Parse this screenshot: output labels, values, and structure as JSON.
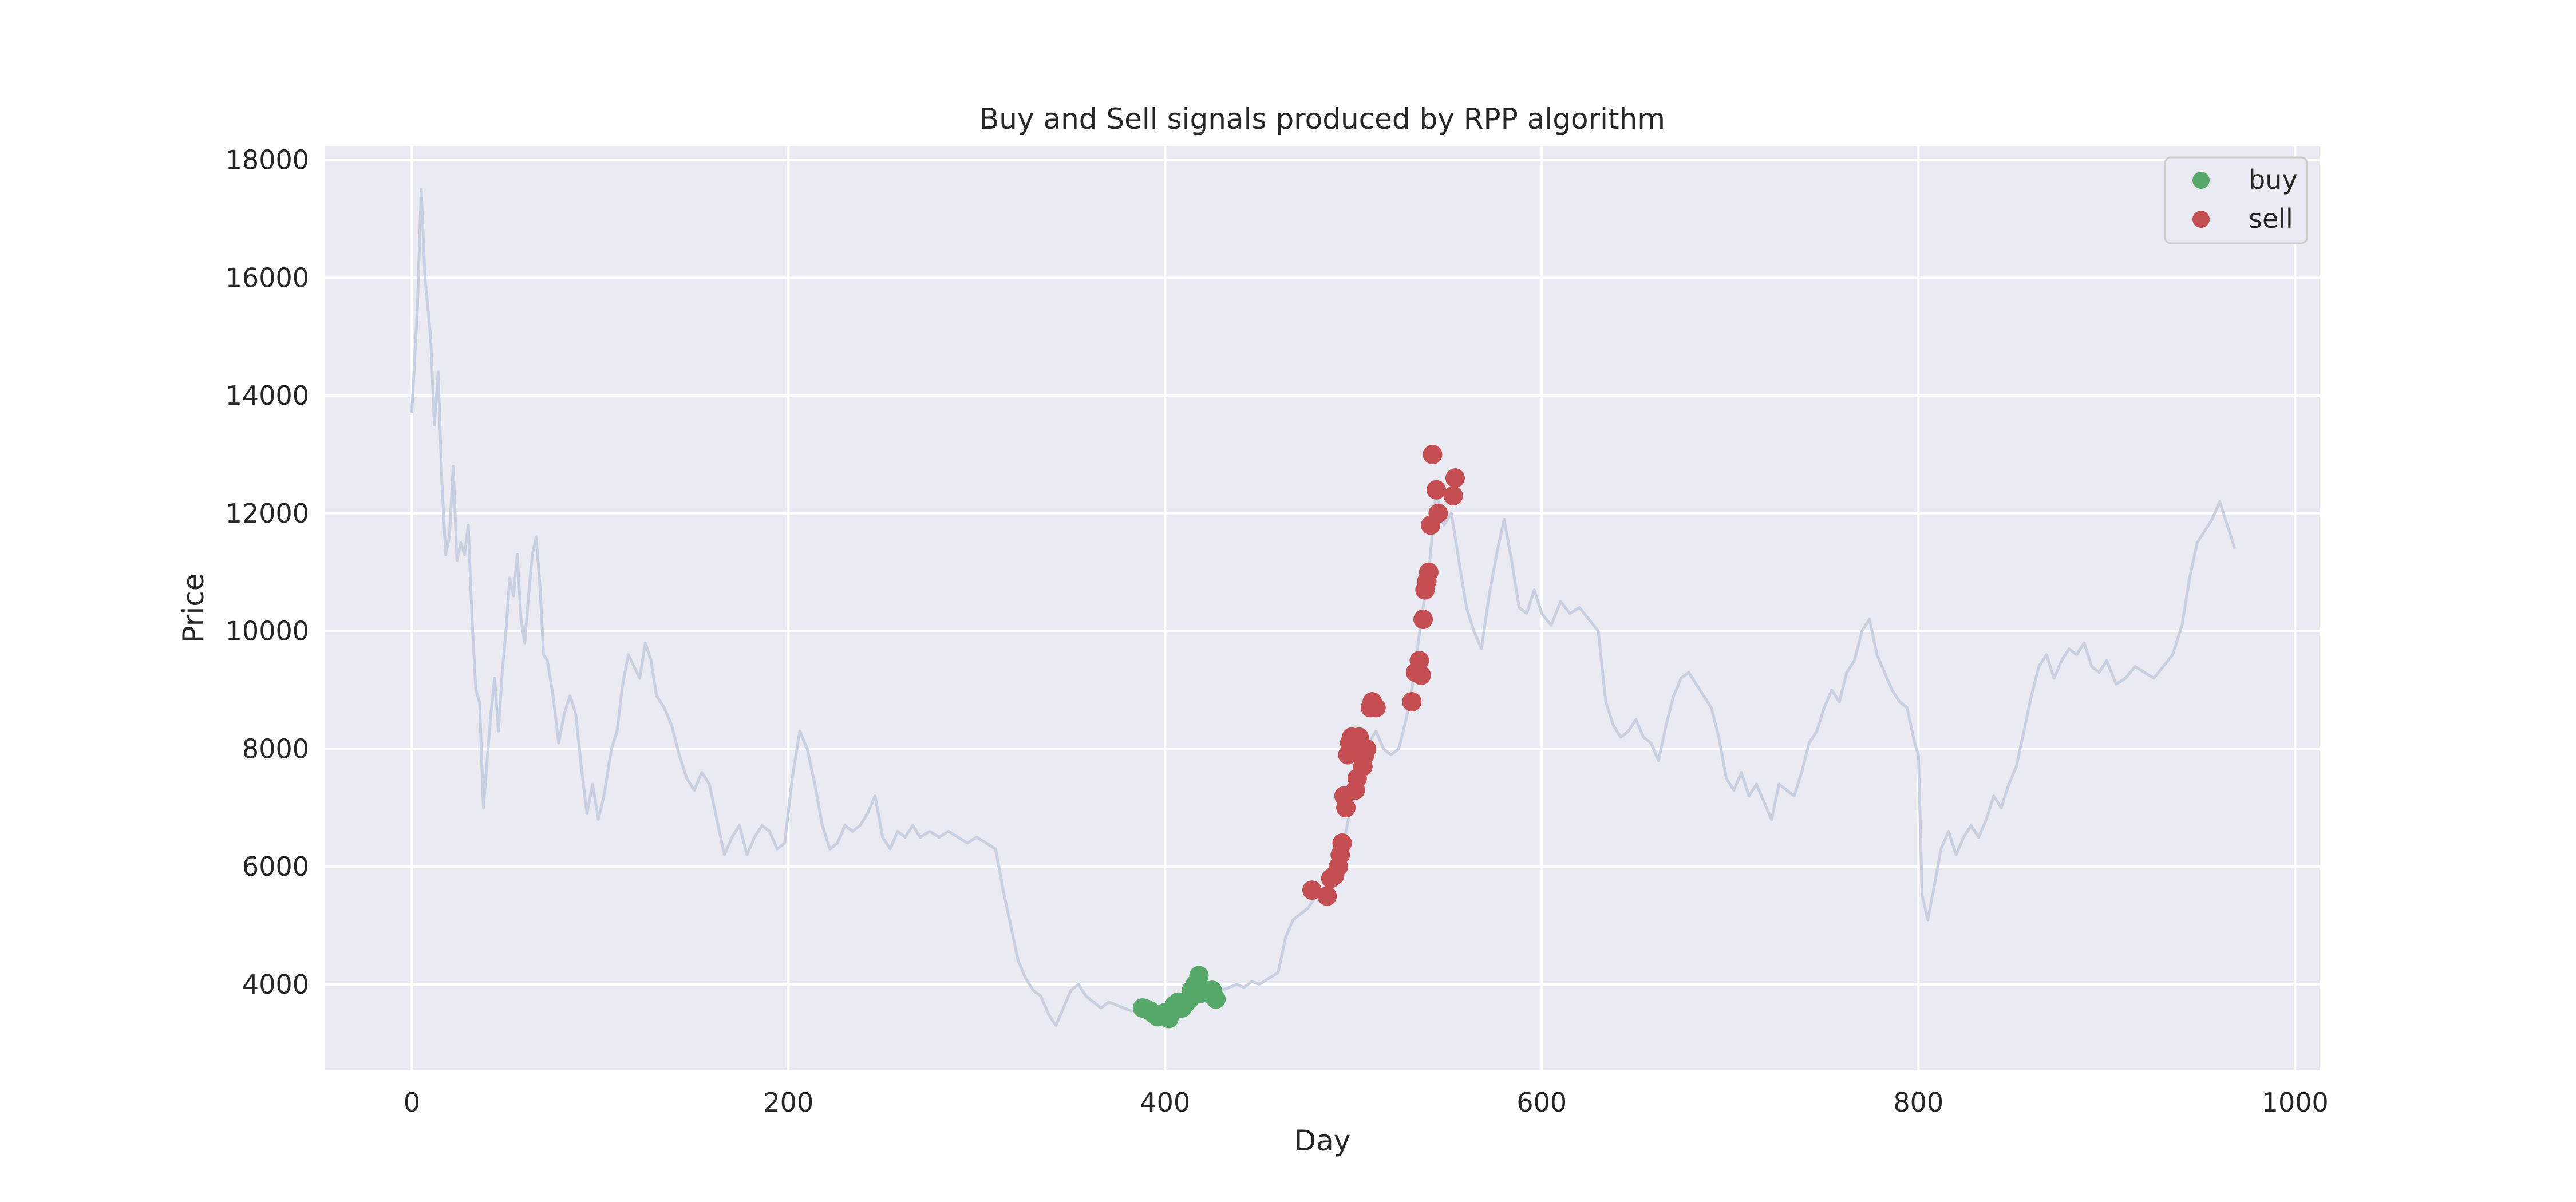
{
  "chart_data": {
    "type": "scatter",
    "title": "Buy and Sell signals produced by RPP algorithm",
    "xlabel": "Day",
    "ylabel": "Price",
    "xlim": [
      -46,
      1013
    ],
    "ylim": [
      2540,
      18240
    ],
    "x_ticks": [
      0,
      200,
      400,
      600,
      800,
      1000
    ],
    "y_ticks": [
      4000,
      6000,
      8000,
      10000,
      12000,
      14000,
      16000,
      18000
    ],
    "grid": true,
    "legend_position": "upper-right",
    "colors": {
      "price_line": "#c8d0e0",
      "buy": "#55a868",
      "sell": "#c44e52",
      "plot_background": "#eaeaf2",
      "grid": "#ffffff"
    },
    "series": [
      {
        "kind": "line",
        "points": [
          [
            0,
            13700
          ],
          [
            3,
            15500
          ],
          [
            5,
            17500
          ],
          [
            7,
            16000
          ],
          [
            10,
            15000
          ],
          [
            12,
            13500
          ],
          [
            14,
            14400
          ],
          [
            16,
            12500
          ],
          [
            18,
            11300
          ],
          [
            20,
            11600
          ],
          [
            22,
            12800
          ],
          [
            24,
            11200
          ],
          [
            26,
            11500
          ],
          [
            28,
            11300
          ],
          [
            30,
            11800
          ],
          [
            32,
            10200
          ],
          [
            34,
            9000
          ],
          [
            36,
            8800
          ],
          [
            38,
            7000
          ],
          [
            40,
            7800
          ],
          [
            42,
            8600
          ],
          [
            44,
            9200
          ],
          [
            46,
            8300
          ],
          [
            48,
            9300
          ],
          [
            50,
            10000
          ],
          [
            52,
            10900
          ],
          [
            54,
            10600
          ],
          [
            56,
            11300
          ],
          [
            58,
            10200
          ],
          [
            60,
            9800
          ],
          [
            62,
            10600
          ],
          [
            64,
            11300
          ],
          [
            66,
            11600
          ],
          [
            68,
            10800
          ],
          [
            70,
            9600
          ],
          [
            72,
            9500
          ],
          [
            75,
            8900
          ],
          [
            78,
            8100
          ],
          [
            81,
            8600
          ],
          [
            84,
            8900
          ],
          [
            87,
            8600
          ],
          [
            90,
            7700
          ],
          [
            93,
            6900
          ],
          [
            96,
            7400
          ],
          [
            99,
            6800
          ],
          [
            102,
            7200
          ],
          [
            106,
            8000
          ],
          [
            109,
            8300
          ],
          [
            112,
            9100
          ],
          [
            115,
            9600
          ],
          [
            118,
            9400
          ],
          [
            121,
            9200
          ],
          [
            124,
            9800
          ],
          [
            127,
            9500
          ],
          [
            130,
            8900
          ],
          [
            134,
            8700
          ],
          [
            138,
            8400
          ],
          [
            142,
            7900
          ],
          [
            146,
            7500
          ],
          [
            150,
            7300
          ],
          [
            154,
            7600
          ],
          [
            158,
            7400
          ],
          [
            162,
            6800
          ],
          [
            166,
            6200
          ],
          [
            170,
            6500
          ],
          [
            174,
            6700
          ],
          [
            178,
            6200
          ],
          [
            182,
            6500
          ],
          [
            186,
            6700
          ],
          [
            190,
            6600
          ],
          [
            194,
            6300
          ],
          [
            198,
            6400
          ],
          [
            202,
            7500
          ],
          [
            206,
            8300
          ],
          [
            210,
            8000
          ],
          [
            214,
            7400
          ],
          [
            218,
            6700
          ],
          [
            222,
            6300
          ],
          [
            226,
            6400
          ],
          [
            230,
            6700
          ],
          [
            234,
            6600
          ],
          [
            238,
            6700
          ],
          [
            242,
            6900
          ],
          [
            246,
            7200
          ],
          [
            250,
            6500
          ],
          [
            254,
            6300
          ],
          [
            258,
            6600
          ],
          [
            262,
            6500
          ],
          [
            266,
            6700
          ],
          [
            270,
            6500
          ],
          [
            275,
            6600
          ],
          [
            280,
            6500
          ],
          [
            285,
            6600
          ],
          [
            290,
            6500
          ],
          [
            295,
            6400
          ],
          [
            300,
            6500
          ],
          [
            305,
            6400
          ],
          [
            310,
            6300
          ],
          [
            314,
            5600
          ],
          [
            318,
            5000
          ],
          [
            322,
            4400
          ],
          [
            326,
            4100
          ],
          [
            330,
            3900
          ],
          [
            334,
            3800
          ],
          [
            338,
            3500
          ],
          [
            342,
            3300
          ],
          [
            346,
            3600
          ],
          [
            350,
            3900
          ],
          [
            354,
            4000
          ],
          [
            358,
            3800
          ],
          [
            362,
            3700
          ],
          [
            366,
            3600
          ],
          [
            370,
            3700
          ],
          [
            374,
            3650
          ],
          [
            378,
            3600
          ],
          [
            382,
            3550
          ],
          [
            386,
            3600
          ],
          [
            390,
            3550
          ],
          [
            394,
            3500
          ],
          [
            398,
            3450
          ],
          [
            402,
            3600
          ],
          [
            406,
            3650
          ],
          [
            410,
            3700
          ],
          [
            414,
            3800
          ],
          [
            418,
            3950
          ],
          [
            422,
            3900
          ],
          [
            426,
            3850
          ],
          [
            430,
            3900
          ],
          [
            434,
            3950
          ],
          [
            438,
            4000
          ],
          [
            442,
            3950
          ],
          [
            446,
            4050
          ],
          [
            450,
            4000
          ],
          [
            455,
            4100
          ],
          [
            460,
            4200
          ],
          [
            464,
            4800
          ],
          [
            468,
            5100
          ],
          [
            472,
            5200
          ],
          [
            476,
            5300
          ],
          [
            480,
            5500
          ],
          [
            484,
            5600
          ],
          [
            488,
            5800
          ],
          [
            492,
            6000
          ],
          [
            496,
            6600
          ],
          [
            500,
            7200
          ],
          [
            504,
            7700
          ],
          [
            508,
            8100
          ],
          [
            512,
            8300
          ],
          [
            516,
            8000
          ],
          [
            520,
            7900
          ],
          [
            524,
            8000
          ],
          [
            528,
            8500
          ],
          [
            532,
            9200
          ],
          [
            536,
            10200
          ],
          [
            540,
            11000
          ],
          [
            544,
            12400
          ],
          [
            548,
            11800
          ],
          [
            552,
            12000
          ],
          [
            556,
            11200
          ],
          [
            560,
            10400
          ],
          [
            564,
            10000
          ],
          [
            568,
            9700
          ],
          [
            572,
            10600
          ],
          [
            576,
            11300
          ],
          [
            580,
            11900
          ],
          [
            584,
            11200
          ],
          [
            588,
            10400
          ],
          [
            592,
            10300
          ],
          [
            596,
            10700
          ],
          [
            600,
            10300
          ],
          [
            605,
            10100
          ],
          [
            610,
            10500
          ],
          [
            615,
            10300
          ],
          [
            620,
            10400
          ],
          [
            625,
            10200
          ],
          [
            630,
            10000
          ],
          [
            634,
            8800
          ],
          [
            638,
            8400
          ],
          [
            642,
            8200
          ],
          [
            646,
            8300
          ],
          [
            650,
            8500
          ],
          [
            654,
            8200
          ],
          [
            658,
            8100
          ],
          [
            662,
            7800
          ],
          [
            666,
            8400
          ],
          [
            670,
            8900
          ],
          [
            674,
            9200
          ],
          [
            678,
            9300
          ],
          [
            682,
            9100
          ],
          [
            686,
            8900
          ],
          [
            690,
            8700
          ],
          [
            694,
            8200
          ],
          [
            698,
            7500
          ],
          [
            702,
            7300
          ],
          [
            706,
            7600
          ],
          [
            710,
            7200
          ],
          [
            714,
            7400
          ],
          [
            718,
            7100
          ],
          [
            722,
            6800
          ],
          [
            726,
            7400
          ],
          [
            730,
            7300
          ],
          [
            734,
            7200
          ],
          [
            738,
            7600
          ],
          [
            742,
            8100
          ],
          [
            746,
            8300
          ],
          [
            750,
            8700
          ],
          [
            754,
            9000
          ],
          [
            758,
            8800
          ],
          [
            762,
            9300
          ],
          [
            766,
            9500
          ],
          [
            770,
            10000
          ],
          [
            774,
            10200
          ],
          [
            778,
            9600
          ],
          [
            782,
            9300
          ],
          [
            786,
            9000
          ],
          [
            790,
            8800
          ],
          [
            794,
            8700
          ],
          [
            798,
            8100
          ],
          [
            800,
            7900
          ],
          [
            802,
            5500
          ],
          [
            805,
            5100
          ],
          [
            808,
            5600
          ],
          [
            812,
            6300
          ],
          [
            816,
            6600
          ],
          [
            820,
            6200
          ],
          [
            824,
            6500
          ],
          [
            828,
            6700
          ],
          [
            832,
            6500
          ],
          [
            836,
            6800
          ],
          [
            840,
            7200
          ],
          [
            844,
            7000
          ],
          [
            848,
            7400
          ],
          [
            852,
            7700
          ],
          [
            856,
            8300
          ],
          [
            860,
            8900
          ],
          [
            864,
            9400
          ],
          [
            868,
            9600
          ],
          [
            872,
            9200
          ],
          [
            876,
            9500
          ],
          [
            880,
            9700
          ],
          [
            884,
            9600
          ],
          [
            888,
            9800
          ],
          [
            892,
            9400
          ],
          [
            896,
            9300
          ],
          [
            900,
            9500
          ],
          [
            905,
            9100
          ],
          [
            910,
            9200
          ],
          [
            915,
            9400
          ],
          [
            920,
            9300
          ],
          [
            925,
            9200
          ],
          [
            930,
            9400
          ],
          [
            935,
            9600
          ],
          [
            940,
            10100
          ],
          [
            944,
            10900
          ],
          [
            948,
            11500
          ],
          [
            952,
            11700
          ],
          [
            956,
            11900
          ],
          [
            960,
            12200
          ],
          [
            964,
            11800
          ],
          [
            968,
            11400
          ]
        ]
      },
      {
        "name": "buy",
        "kind": "scatter",
        "points": [
          [
            388,
            3600
          ],
          [
            390,
            3580
          ],
          [
            392,
            3550
          ],
          [
            394,
            3500
          ],
          [
            396,
            3450
          ],
          [
            398,
            3480
          ],
          [
            400,
            3520
          ],
          [
            402,
            3420
          ],
          [
            404,
            3550
          ],
          [
            405,
            3650
          ],
          [
            407,
            3700
          ],
          [
            409,
            3600
          ],
          [
            411,
            3680
          ],
          [
            413,
            3750
          ],
          [
            414,
            3900
          ],
          [
            416,
            4000
          ],
          [
            418,
            4150
          ],
          [
            419,
            3850
          ],
          [
            421,
            3900
          ],
          [
            423,
            3850
          ],
          [
            425,
            3900
          ],
          [
            427,
            3750
          ]
        ]
      },
      {
        "name": "sell",
        "kind": "scatter",
        "points": [
          [
            478,
            5600
          ],
          [
            486,
            5500
          ],
          [
            488,
            5800
          ],
          [
            490,
            5850
          ],
          [
            492,
            6000
          ],
          [
            493,
            6200
          ],
          [
            494,
            6400
          ],
          [
            495,
            7200
          ],
          [
            496,
            7000
          ],
          [
            497,
            7900
          ],
          [
            498,
            8100
          ],
          [
            499,
            8200
          ],
          [
            500,
            7950
          ],
          [
            501,
            7300
          ],
          [
            502,
            7500
          ],
          [
            503,
            8200
          ],
          [
            505,
            7700
          ],
          [
            506,
            7900
          ],
          [
            507,
            8000
          ],
          [
            509,
            8700
          ],
          [
            510,
            8800
          ],
          [
            512,
            8700
          ],
          [
            531,
            8800
          ],
          [
            533,
            9300
          ],
          [
            535,
            9500
          ],
          [
            536,
            9250
          ],
          [
            537,
            10200
          ],
          [
            538,
            10700
          ],
          [
            539,
            10850
          ],
          [
            540,
            11000
          ],
          [
            541,
            11800
          ],
          [
            542,
            13000
          ],
          [
            544,
            12400
          ],
          [
            545,
            12000
          ],
          [
            553,
            12300
          ],
          [
            554,
            12600
          ]
        ]
      }
    ]
  }
}
